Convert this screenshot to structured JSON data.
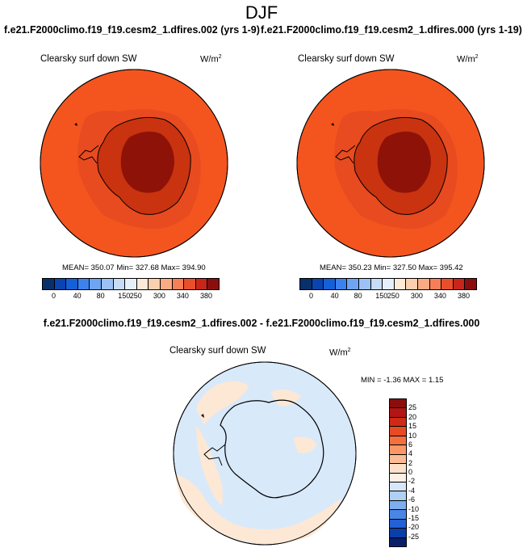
{
  "title": "DJF",
  "panel_left": {
    "case": "f.e21.F2000climo.f19_f19.cesm2_1.dfires.002 (yrs 1-9)",
    "varname": "Clearsky surf down SW",
    "units": "W/m",
    "units_sup": "2",
    "stats": "MEAN= 350.07  Min= 327.68  Max= 394.90"
  },
  "panel_right": {
    "case": "f.e21.F2000climo.f19_f19.cesm2_1.dfires.000 (yrs 1-19)",
    "varname": "Clearsky surf down SW",
    "units": "W/m",
    "units_sup": "2",
    "stats": "MEAN= 350.23  Min= 327.50  Max= 395.42"
  },
  "abs_colorbar": {
    "ticks": [
      "0",
      "40",
      "80",
      "150",
      "250",
      "300",
      "340",
      "380"
    ],
    "colors": [
      "#08306b",
      "#0a44b0",
      "#1460d8",
      "#3c82ee",
      "#6fa4f2",
      "#9cc2f5",
      "#c6dcf7",
      "#e6f0fa",
      "#fdebd8",
      "#fcd0ae",
      "#fbab84",
      "#f77f57",
      "#ea4f2c",
      "#c8261a",
      "#8a0e0e"
    ]
  },
  "diff_panel": {
    "title": "f.e21.F2000climo.f19_f19.cesm2_1.dfires.002 - f.e21.F2000climo.f19_f19.cesm2_1.dfires.000",
    "varname": "Clearsky surf down SW",
    "units": "W/m",
    "units_sup": "2",
    "stats": "MIN =  -1.36 MAX =   1.15"
  },
  "diff_colorbar": {
    "ticks": [
      "25",
      "20",
      "15",
      "10",
      "6",
      "4",
      "2",
      "0",
      "-2",
      "-4",
      "-6",
      "-10",
      "-15",
      "-20",
      "-25"
    ],
    "colors": [
      "#8a0e0e",
      "#b31414",
      "#d02a17",
      "#e84a24",
      "#f6703f",
      "#fb9766",
      "#fcbc95",
      "#fde0c9",
      "#fdf0e4",
      "#d7e6f8",
      "#afcff3",
      "#7eaeee",
      "#4a86e4",
      "#2460d6",
      "#0b3ea8",
      "#08206b"
    ]
  },
  "colors": {
    "ocean_abs": "#f4551f",
    "coast_abs": "#e84b1f",
    "ice_mid": "#c9330f",
    "ice_core": "#8e1208",
    "diff_neg": "#d8e9fa",
    "diff_pos": "#fde8d5"
  }
}
